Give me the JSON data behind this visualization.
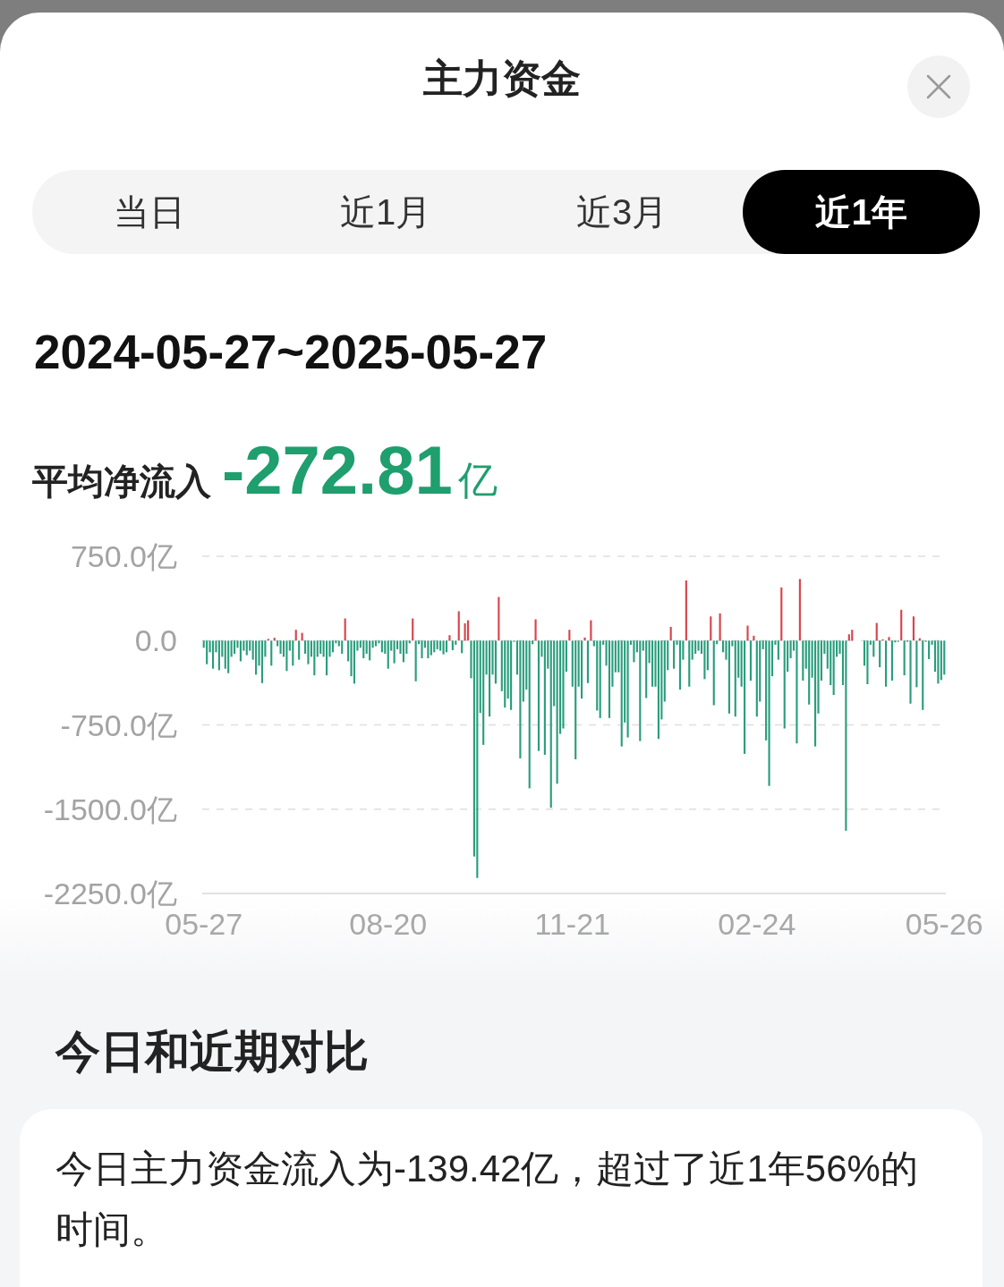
{
  "chart_data": {
    "type": "bar",
    "title": "主力资金",
    "subtitle": "2024-05-27~2025-05-27",
    "annotations": [
      "当日",
      "近1月",
      "近3月",
      "近1年",
      "平均净流入",
      "-272.81",
      "亿",
      "今日和近期对比",
      "今日主力资金流入为-139.42亿，超过了近1年56%的时间。"
    ],
    "categories": [
      "05-27",
      null,
      null,
      null,
      null,
      null,
      null,
      null,
      null,
      null,
      null,
      null,
      null,
      null,
      null,
      null,
      null,
      null,
      null,
      null,
      null,
      null,
      null,
      null,
      null,
      null,
      null,
      null,
      null,
      null,
      null,
      null,
      null,
      null,
      null,
      null,
      null,
      null,
      null,
      null,
      null,
      null,
      null,
      null,
      null,
      null,
      null,
      null,
      null,
      null,
      null,
      null,
      null,
      null,
      null,
      null,
      null,
      null,
      null,
      null,
      "08-20",
      null,
      null,
      null,
      null,
      null,
      null,
      null,
      null,
      null,
      null,
      null,
      null,
      null,
      null,
      null,
      null,
      null,
      null,
      null,
      null,
      null,
      null,
      null,
      null,
      null,
      null,
      null,
      null,
      null,
      null,
      null,
      null,
      null,
      null,
      null,
      null,
      null,
      null,
      null,
      null,
      null,
      null,
      null,
      null,
      null,
      null,
      null,
      null,
      null,
      null,
      null,
      null,
      null,
      null,
      null,
      null,
      null,
      null,
      null,
      "11-21",
      null,
      null,
      null,
      null,
      null,
      null,
      null,
      null,
      null,
      null,
      null,
      null,
      null,
      null,
      null,
      null,
      null,
      null,
      null,
      null,
      null,
      null,
      null,
      null,
      null,
      null,
      null,
      null,
      null,
      null,
      null,
      null,
      null,
      null,
      null,
      null,
      null,
      null,
      null,
      null,
      null,
      null,
      null,
      null,
      null,
      null,
      null,
      null,
      null,
      null,
      null,
      null,
      null,
      null,
      null,
      null,
      null,
      null,
      null,
      "02-24",
      null,
      null,
      null,
      null,
      null,
      null,
      null,
      null,
      null,
      null,
      null,
      null,
      null,
      null,
      null,
      null,
      null,
      null,
      null,
      null,
      null,
      null,
      null,
      null,
      null,
      null,
      null,
      null,
      null,
      null,
      null,
      null,
      null,
      null,
      null,
      null,
      null,
      null,
      null,
      null,
      null,
      null,
      null,
      null,
      null,
      null,
      null,
      null,
      null,
      null,
      null,
      null,
      null,
      null,
      null,
      null,
      null,
      null,
      null,
      null,
      "05-26"
    ],
    "values": [
      -64,
      -210,
      -104,
      -250,
      -104,
      -263,
      -144,
      -250,
      -290,
      -144,
      -117,
      -64,
      -184,
      -90,
      -130,
      -90,
      -170,
      -303,
      -223,
      -378,
      -144,
      15,
      -223,
      25,
      -50,
      -117,
      -144,
      -271,
      -90,
      -223,
      96,
      -170,
      69,
      -117,
      -210,
      -144,
      -309,
      -144,
      -117,
      -144,
      -309,
      -144,
      -104,
      -24,
      -50,
      -117,
      197,
      -184,
      -317,
      -383,
      -90,
      -64,
      -157,
      -117,
      -176,
      -64,
      -50,
      -24,
      -104,
      -117,
      -250,
      -90,
      -202,
      -77,
      -117,
      -192,
      -117,
      -24,
      197,
      -362,
      -32,
      -157,
      -64,
      -157,
      -130,
      -104,
      -77,
      -90,
      -122,
      -104,
      48,
      -85,
      -37,
      261,
      -112,
      154,
      181,
      -335,
      -1921,
      -2112,
      -644,
      -928,
      -303,
      -676,
      -303,
      -383,
      388,
      -450,
      -596,
      -516,
      -617,
      -11,
      -303,
      -1048,
      -543,
      -436,
      -1314,
      -32,
      189,
      -982,
      -144,
      -1016,
      -250,
      -1487,
      -583,
      -1274,
      -830,
      -782,
      -277,
      96,
      -410,
      -1056,
      -410,
      -516,
      27,
      -378,
      181,
      -50,
      -622,
      -689,
      -37,
      -223,
      -689,
      -410,
      -282,
      -282,
      -942,
      -729,
      -862,
      -37,
      -192,
      -104,
      -894,
      -90,
      -511,
      -200,
      -410,
      -410,
      -875,
      -702,
      -543,
      -263,
      122,
      -250,
      -37,
      -436,
      -170,
      535,
      -410,
      -170,
      -117,
      -90,
      -117,
      -343,
      -263,
      215,
      -575,
      -32,
      242,
      -104,
      -170,
      -649,
      -50,
      -676,
      -330,
      -410,
      -1008,
      133,
      -356,
      43,
      -676,
      -543,
      -77,
      -888,
      -1293,
      -317,
      -37,
      -170,
      473,
      -782,
      -277,
      -157,
      -90,
      -915,
      548,
      -356,
      -250,
      -569,
      -330,
      -942,
      -649,
      -356,
      -117,
      -250,
      -396,
      -484,
      -144,
      -117,
      -396,
      -1692,
      56,
      96,
      null,
      null,
      null,
      -223,
      -388,
      -37,
      -144,
      157,
      -237,
      11,
      -410,
      32,
      -356,
      -16,
      -11,
      274,
      -309,
      -11,
      -561,
      215,
      -415,
      21,
      -617,
      -11,
      -165,
      -37,
      -277,
      -383,
      -351,
      -303
    ],
    "colors": [
      "#2a9d7c",
      "#2a9d7c",
      "#2a9d7c",
      "#2a9d7c",
      "#2a9d7c",
      "#2a9d7c",
      "#2a9d7c",
      "#2a9d7c",
      "#2a9d7c",
      "#2a9d7c",
      "#2a9d7c",
      "#2a9d7c",
      "#2a9d7c",
      "#2a9d7c",
      "#2a9d7c",
      "#2a9d7c",
      "#2a9d7c",
      "#2a9d7c",
      "#2a9d7c",
      "#2a9d7c",
      "#2a9d7c",
      "#d9434b",
      "#2a9d7c",
      "#d9434b",
      "#2a9d7c",
      "#2a9d7c",
      "#2a9d7c",
      "#2a9d7c",
      "#2a9d7c",
      "#2a9d7c",
      "#d9434b",
      "#2a9d7c",
      "#d9434b",
      "#2a9d7c",
      "#2a9d7c",
      "#2a9d7c",
      "#2a9d7c",
      "#2a9d7c",
      "#2a9d7c",
      "#2a9d7c",
      "#2a9d7c",
      "#2a9d7c",
      "#2a9d7c",
      "#2a9d7c",
      "#2a9d7c",
      "#2a9d7c",
      "#d9434b",
      "#2a9d7c",
      "#2a9d7c",
      "#2a9d7c",
      "#2a9d7c",
      "#2a9d7c",
      "#2a9d7c",
      "#2a9d7c",
      "#2a9d7c",
      "#2a9d7c",
      "#2a9d7c",
      "#2a9d7c",
      "#2a9d7c",
      "#2a9d7c",
      "#2a9d7c",
      "#2a9d7c",
      "#2a9d7c",
      "#2a9d7c",
      "#2a9d7c",
      "#2a9d7c",
      "#2a9d7c",
      "#2a9d7c",
      "#d9434b",
      "#2a9d7c",
      "#2a9d7c",
      "#2a9d7c",
      "#2a9d7c",
      "#2a9d7c",
      "#2a9d7c",
      "#2a9d7c",
      "#2a9d7c",
      "#2a9d7c",
      "#2a9d7c",
      "#2a9d7c",
      "#d9434b",
      "#2a9d7c",
      "#2a9d7c",
      "#d9434b",
      "#2a9d7c",
      "#d9434b",
      "#d9434b",
      "#2a9d7c",
      "#2a9d7c",
      "#2a9d7c",
      "#2a9d7c",
      "#2a9d7c",
      "#2a9d7c",
      "#2a9d7c",
      "#2a9d7c",
      "#2a9d7c",
      "#d9434b",
      "#2a9d7c",
      "#2a9d7c",
      "#2a9d7c",
      "#2a9d7c",
      "#2a9d7c",
      "#2a9d7c",
      "#2a9d7c",
      "#2a9d7c",
      "#2a9d7c",
      "#2a9d7c",
      "#2a9d7c",
      "#d9434b",
      "#2a9d7c",
      "#2a9d7c",
      "#2a9d7c",
      "#2a9d7c",
      "#2a9d7c",
      "#2a9d7c",
      "#2a9d7c",
      "#2a9d7c",
      "#2a9d7c",
      "#2a9d7c",
      "#d9434b",
      "#2a9d7c",
      "#2a9d7c",
      "#2a9d7c",
      "#2a9d7c",
      "#d9434b",
      "#2a9d7c",
      "#d9434b",
      "#2a9d7c",
      "#2a9d7c",
      "#2a9d7c",
      "#2a9d7c",
      "#2a9d7c",
      "#2a9d7c",
      "#2a9d7c",
      "#2a9d7c",
      "#2a9d7c",
      "#2a9d7c",
      "#2a9d7c",
      "#2a9d7c",
      "#2a9d7c",
      "#2a9d7c",
      "#2a9d7c",
      "#2a9d7c",
      "#2a9d7c",
      "#2a9d7c",
      "#2a9d7c",
      "#2a9d7c",
      "#2a9d7c",
      "#2a9d7c",
      "#2a9d7c",
      "#2a9d7c",
      "#2a9d7c",
      "#d9434b",
      "#2a9d7c",
      "#2a9d7c",
      "#2a9d7c",
      "#2a9d7c",
      "#d9434b",
      "#2a9d7c",
      "#2a9d7c",
      "#2a9d7c",
      "#2a9d7c",
      "#2a9d7c",
      "#2a9d7c",
      "#2a9d7c",
      "#d9434b",
      "#2a9d7c",
      "#2a9d7c",
      "#d9434b",
      "#2a9d7c",
      "#2a9d7c",
      "#2a9d7c",
      "#2a9d7c",
      "#2a9d7c",
      "#2a9d7c",
      "#2a9d7c",
      "#2a9d7c",
      "#d9434b",
      "#2a9d7c",
      "#d9434b",
      "#2a9d7c",
      "#2a9d7c",
      "#2a9d7c",
      "#2a9d7c",
      "#2a9d7c",
      "#2a9d7c",
      "#2a9d7c",
      "#2a9d7c",
      "#d9434b",
      "#2a9d7c",
      "#2a9d7c",
      "#2a9d7c",
      "#2a9d7c",
      "#2a9d7c",
      "#d9434b",
      "#2a9d7c",
      "#2a9d7c",
      "#2a9d7c",
      "#2a9d7c",
      "#2a9d7c",
      "#2a9d7c",
      "#2a9d7c",
      "#2a9d7c",
      "#2a9d7c",
      "#2a9d7c",
      "#2a9d7c",
      "#2a9d7c",
      "#2a9d7c",
      "#2a9d7c",
      "#2a9d7c",
      "#d9434b",
      "#d9434b",
      null,
      null,
      null,
      "#2a9d7c",
      "#2a9d7c",
      "#2a9d7c",
      "#2a9d7c",
      "#d9434b",
      "#2a9d7c",
      "#d9434b",
      "#2a9d7c",
      "#d9434b",
      "#2a9d7c",
      "#2a9d7c",
      "#2a9d7c",
      "#d9434b",
      "#2a9d7c",
      "#2a9d7c",
      "#2a9d7c",
      "#d9434b",
      "#2a9d7c",
      "#d9434b",
      "#2a9d7c",
      "#2a9d7c",
      "#2a9d7c",
      "#2a9d7c",
      "#2a9d7c",
      "#2a9d7c",
      "#2a9d7c",
      "#2a9d7c"
    ],
    "ylim": [
      -2250,
      750
    ],
    "yticks": [
      {
        "value": 750,
        "label": "750.0亿"
      },
      {
        "value": 0,
        "label": "0.0"
      },
      {
        "value": -750,
        "label": "-750.0亿"
      },
      {
        "value": -1500,
        "label": "-1500.0亿"
      },
      {
        "value": -2250,
        "label": "-2250.0亿"
      }
    ],
    "grid": "y"
  }
}
